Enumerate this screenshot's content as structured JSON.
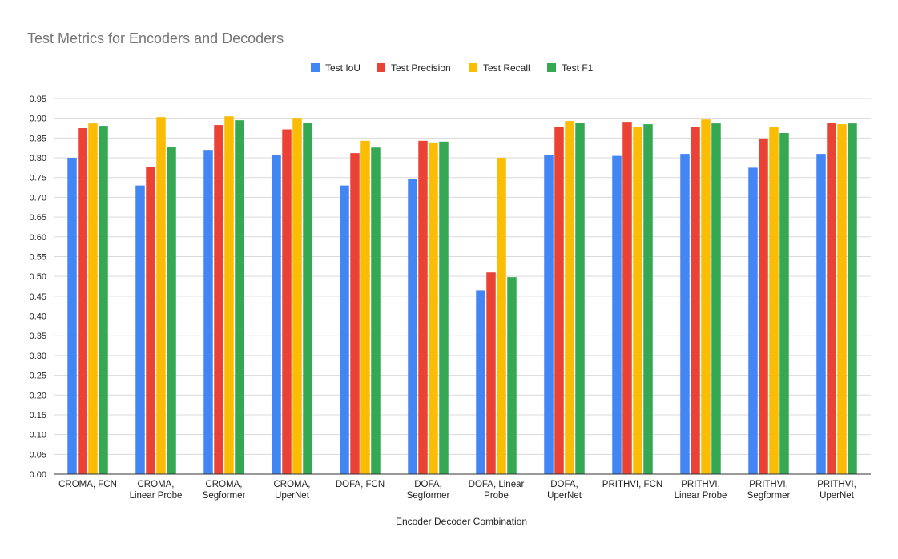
{
  "chart_data": {
    "type": "bar",
    "title": "Test Metrics for Encoders and Decoders",
    "xlabel": "Encoder Decoder Combination",
    "ylabel": "",
    "ylim": [
      0,
      0.95
    ],
    "yticks": [
      "0.00",
      "0.05",
      "0.10",
      "0.15",
      "0.20",
      "0.25",
      "0.30",
      "0.35",
      "0.40",
      "0.45",
      "0.50",
      "0.55",
      "0.60",
      "0.65",
      "0.70",
      "0.75",
      "0.80",
      "0.85",
      "0.90",
      "0.95"
    ],
    "grid": true,
    "legend_position": "top-center",
    "categories": [
      [
        "CROMA, FCN"
      ],
      [
        "CROMA,",
        "Linear Probe"
      ],
      [
        "CROMA,",
        "Segformer"
      ],
      [
        "CROMA,",
        "UperNet"
      ],
      [
        "DOFA, FCN"
      ],
      [
        "DOFA,",
        "Segformer"
      ],
      [
        "DOFA, Linear",
        "Probe"
      ],
      [
        "DOFA,",
        "UperNet"
      ],
      [
        "PRITHVI, FCN"
      ],
      [
        "PRITHVI,",
        "Linear Probe"
      ],
      [
        "PRITHVI,",
        "Segformer"
      ],
      [
        "PRITHVI,",
        "UperNet"
      ]
    ],
    "series": [
      {
        "name": "Test IoU",
        "color": "#4285f4",
        "values": [
          0.8,
          0.73,
          0.82,
          0.807,
          0.73,
          0.746,
          0.465,
          0.807,
          0.805,
          0.81,
          0.775,
          0.81
        ]
      },
      {
        "name": "Test Precision",
        "color": "#ea4335",
        "values": [
          0.875,
          0.777,
          0.883,
          0.872,
          0.812,
          0.843,
          0.51,
          0.878,
          0.891,
          0.878,
          0.849,
          0.889
        ]
      },
      {
        "name": "Test Recall",
        "color": "#fbbc04",
        "values": [
          0.887,
          0.903,
          0.905,
          0.901,
          0.843,
          0.839,
          0.8,
          0.893,
          0.878,
          0.897,
          0.878,
          0.885
        ]
      },
      {
        "name": "Test F1",
        "color": "#34a853",
        "values": [
          0.881,
          0.827,
          0.895,
          0.888,
          0.826,
          0.841,
          0.498,
          0.888,
          0.885,
          0.887,
          0.863,
          0.887
        ]
      }
    ]
  }
}
